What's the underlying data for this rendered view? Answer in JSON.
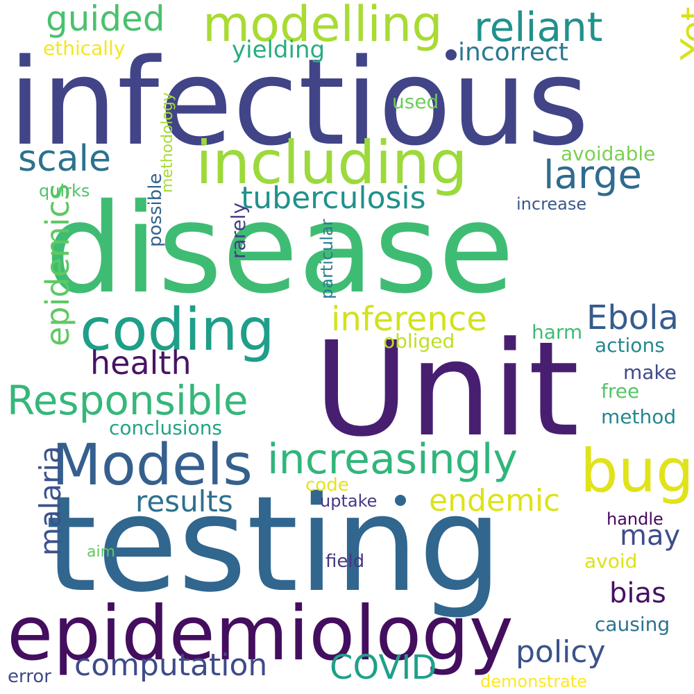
{
  "words": [
    {
      "text": "infectious",
      "color": "#414487"
    },
    {
      "text": "disease",
      "color": "#3fbc73"
    },
    {
      "text": "Unit",
      "color": "#481f70"
    },
    {
      "text": "testing",
      "color": "#31668e"
    },
    {
      "text": "epidemiology",
      "color": "#440e5f"
    },
    {
      "text": "including",
      "color": "#9cd93b"
    },
    {
      "text": "coding",
      "color": "#1f9e89"
    },
    {
      "text": "Models",
      "color": "#355f8d"
    },
    {
      "text": "bug",
      "color": "#e0e31a"
    },
    {
      "text": "modelling",
      "color": "#a8db34"
    },
    {
      "text": "increasingly",
      "color": "#31b57b"
    },
    {
      "text": "reliant",
      "color": "#21918c"
    },
    {
      "text": "Responsible",
      "color": "#35b779"
    },
    {
      "text": "guided",
      "color": "#4ac16d"
    },
    {
      "text": "scale",
      "color": "#2c728e"
    },
    {
      "text": "large",
      "color": "#2f6b8e"
    },
    {
      "text": "Yet",
      "color": "#d8e219"
    },
    {
      "text": "epidemics",
      "color": "#5ec962"
    },
    {
      "text": "tuberculosis",
      "color": "#21918c"
    },
    {
      "text": "inference",
      "color": "#d2e21b"
    },
    {
      "text": "Ebola",
      "color": "#365c8d"
    },
    {
      "text": "health",
      "color": "#471365"
    },
    {
      "text": "endemic",
      "color": "#dde318"
    },
    {
      "text": "malaria",
      "color": "#3b528b"
    },
    {
      "text": "results",
      "color": "#2d708e"
    },
    {
      "text": "computation",
      "color": "#3e4a89"
    },
    {
      "text": "COVID",
      "color": "#1fa088"
    },
    {
      "text": "policy",
      "color": "#3b528b"
    },
    {
      "text": "may",
      "color": "#3e4c8a"
    },
    {
      "text": "bias",
      "color": "#471063"
    },
    {
      "text": "incorrect",
      "color": "#2a788e"
    },
    {
      "text": "yielding",
      "color": "#26ad81"
    },
    {
      "text": "ethically",
      "color": "#f4e61e"
    },
    {
      "text": "used",
      "color": "#6ccd5a"
    },
    {
      "text": "avoidable",
      "color": "#7ad151"
    },
    {
      "text": "methodology",
      "color": "#a5db36"
    },
    {
      "text": "quirks",
      "color": "#4ec36b"
    },
    {
      "text": "possible",
      "color": "#33628d"
    },
    {
      "text": "rarely",
      "color": "#433e85"
    },
    {
      "text": "particular",
      "color": "#287d8e"
    },
    {
      "text": "increase",
      "color": "#38598c"
    },
    {
      "text": "obliged",
      "color": "#bddf26"
    },
    {
      "text": "harm",
      "color": "#3fbc73"
    },
    {
      "text": "actions",
      "color": "#23888e"
    },
    {
      "text": "conclusions",
      "color": "#20a386"
    },
    {
      "text": "make",
      "color": "#3e4a89"
    },
    {
      "text": "free",
      "color": "#54c568"
    },
    {
      "text": "method",
      "color": "#24878e"
    },
    {
      "text": "code",
      "color": "#e5e419"
    },
    {
      "text": "uptake",
      "color": "#443983"
    },
    {
      "text": "handle",
      "color": "#46085c"
    },
    {
      "text": "aim",
      "color": "#5ec962"
    },
    {
      "text": "avoid",
      "color": "#dde318"
    },
    {
      "text": "field",
      "color": "#453781"
    },
    {
      "text": "causing",
      "color": "#2c728e"
    },
    {
      "text": "error",
      "color": "#3e4a89"
    },
    {
      "text": "demonstrate",
      "color": "#fde725"
    }
  ],
  "dots": [
    {
      "color": "#414487"
    },
    {
      "color": "#31668e"
    }
  ]
}
